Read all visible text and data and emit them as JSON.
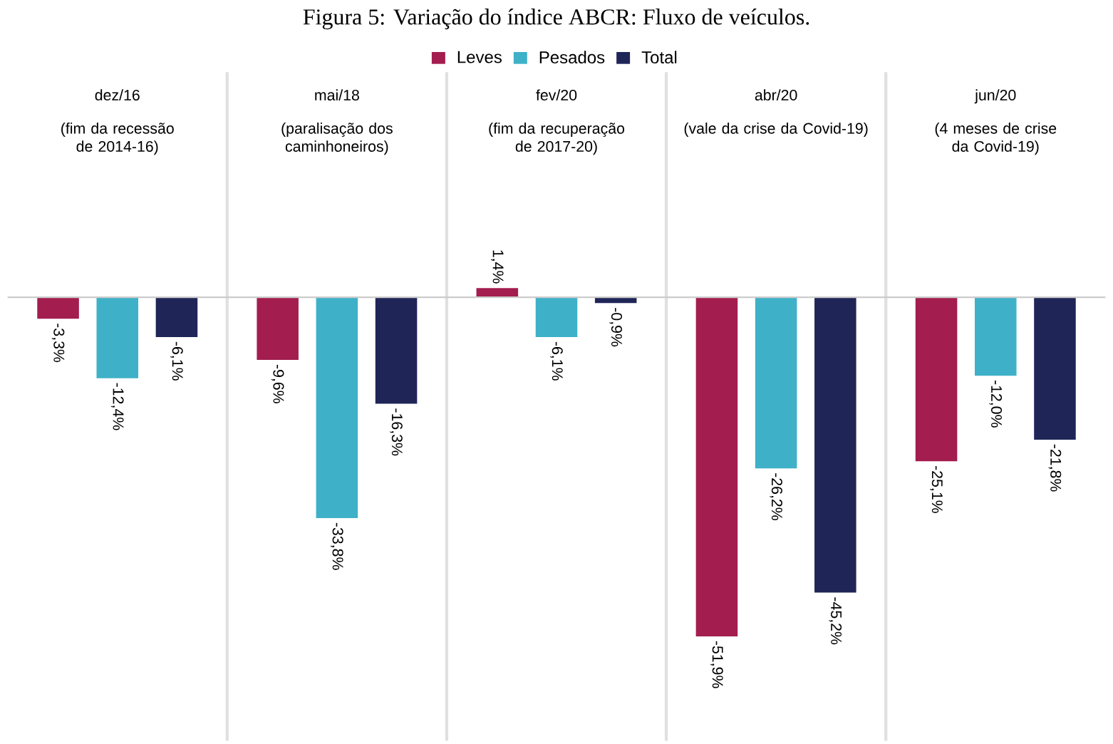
{
  "chart_data": {
    "type": "bar",
    "title": "Figura 5: Variação do índice ABCR: Fluxo de veículos.",
    "categories": [
      "dez/16",
      "mai/18",
      "fev/20",
      "abr/20",
      "jun/20"
    ],
    "annotations": [
      "(fim da recessão de 2014-16)",
      "(paralisação dos caminhoneiros)",
      "(fim da recuperação de 2017-20)",
      "(vale da crise da Covid-19)",
      "(4 meses de crise da Covid-19)"
    ],
    "series": [
      {
        "name": "Leves",
        "color": "#a31d4f",
        "values": [
          -3.3,
          -9.6,
          1.4,
          -51.9,
          -25.1
        ],
        "value_labels": [
          "-3,3%",
          "-9,6%",
          "1,4%",
          "-51,9%",
          "-25,1%"
        ]
      },
      {
        "name": "Pesados",
        "color": "#3eb1c8",
        "values": [
          -12.4,
          -33.8,
          -6.1,
          -26.2,
          -12.0
        ],
        "value_labels": [
          "-12,4%",
          "-33,8%",
          "-6,1%",
          "-26,2%",
          "-12,0%"
        ]
      },
      {
        "name": "Total",
        "color": "#1f2557",
        "values": [
          -6.1,
          -16.3,
          -0.9,
          -45.2,
          -21.8
        ],
        "value_labels": [
          "-6,1%",
          "-16,3%",
          "-0,9%",
          "-45,2%",
          "-21,8%"
        ]
      }
    ],
    "grid": "x",
    "legend": "top"
  }
}
